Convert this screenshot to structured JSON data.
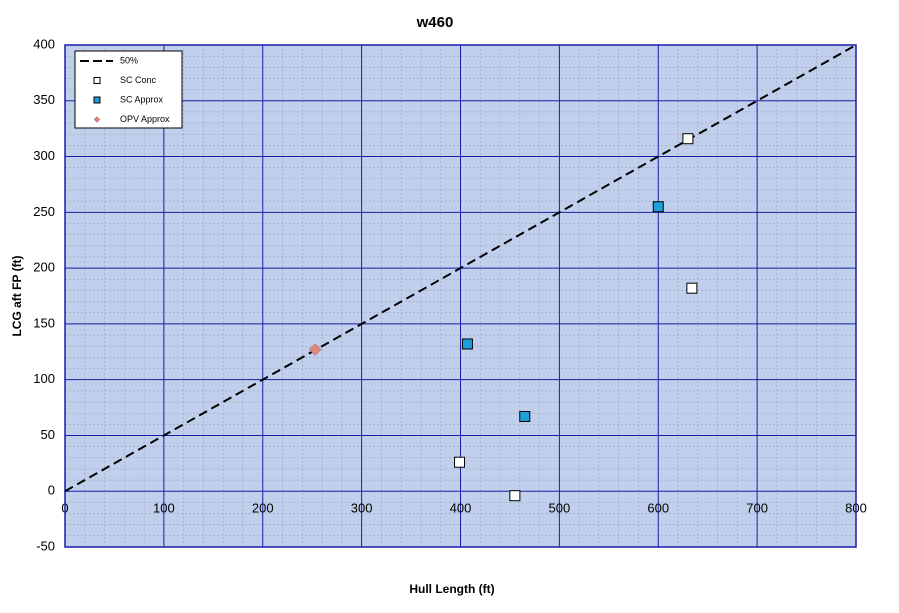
{
  "chart_data": {
    "type": "scatter",
    "title": "w460",
    "x_label": "Hull Length (ft)",
    "y_label": "LCG aft FP (ft)",
    "xlim": [
      0,
      800
    ],
    "ylim": [
      -50,
      400
    ],
    "xticks": [
      0,
      100,
      200,
      300,
      400,
      500,
      600,
      700,
      800
    ],
    "yticks": [
      -50,
      0,
      50,
      100,
      150,
      200,
      250,
      300,
      350,
      400
    ],
    "xminorticks": [
      0,
      20,
      40,
      60,
      80,
      100,
      120,
      140,
      160,
      180,
      200,
      220,
      240,
      260,
      280,
      300,
      320,
      340,
      360,
      380,
      400,
      420,
      440,
      460,
      480,
      500,
      520,
      540,
      560,
      580,
      600,
      620,
      640,
      660,
      680,
      700,
      720,
      740,
      760,
      780,
      800
    ],
    "yminorticks": [
      -50,
      -40,
      -30,
      -20,
      -10,
      0,
      10,
      20,
      30,
      40,
      50,
      60,
      70,
      80,
      90,
      100,
      110,
      120,
      130,
      140,
      150,
      160,
      170,
      180,
      190,
      200,
      210,
      220,
      230,
      240,
      250,
      260,
      270,
      280,
      290,
      300,
      310,
      320,
      330,
      340,
      350,
      360,
      370,
      380,
      390,
      400
    ],
    "grid": true,
    "legend": "upper left",
    "plot_background": "#c0d0ec",
    "grid_color": "#1c1ca8",
    "series": [
      {
        "name": "50%",
        "kind": "line",
        "color": "#000000",
        "x": [
          0,
          800
        ],
        "values": [
          0,
          400
        ]
      },
      {
        "name": "SC Conc",
        "kind": "marker",
        "marker": "square",
        "color": "#ffffff",
        "x": [
          630,
          634,
          399,
          455
        ],
        "values": [
          316,
          182,
          26,
          -4
        ]
      },
      {
        "name": "SC Approx",
        "kind": "marker",
        "marker": "square",
        "color": "#1ea0dc",
        "x": [
          407,
          465,
          600
        ],
        "values": [
          132,
          67,
          255
        ]
      },
      {
        "name": "OPV Approx",
        "kind": "marker",
        "marker": "diamond",
        "color": "#d88880",
        "x": [
          253
        ],
        "values": [
          127
        ]
      }
    ]
  }
}
